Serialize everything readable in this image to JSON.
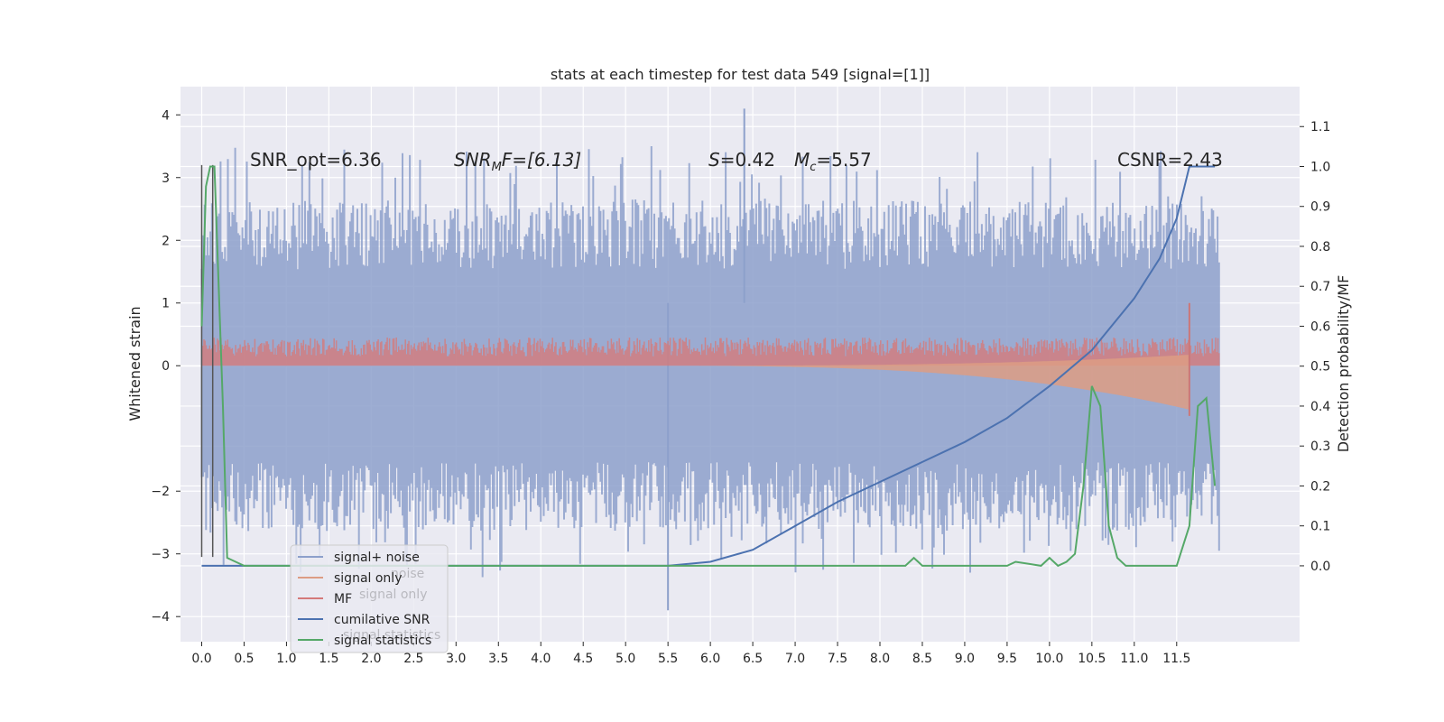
{
  "chart_data": {
    "type": "line",
    "title": "stats at each timestep for test data 549 [signal=[1]]",
    "ylabel": "Whitened strain",
    "ylabel_right": "Detection probability/MF",
    "xlim": [
      -0.25,
      12.95
    ],
    "ylim": [
      -4.4,
      4.45
    ],
    "ylim_right": [
      -0.19,
      1.2
    ],
    "xticks": [
      "0.0",
      "0.5",
      "1.0",
      "1.5",
      "2.0",
      "2.5",
      "3.0",
      "3.5",
      "4.0",
      "4.5",
      "5.0",
      "5.5",
      "6.0",
      "6.5",
      "7.0",
      "7.5",
      "8.0",
      "8.5",
      "9.0",
      "9.5",
      "10.0",
      "10.5",
      "11.0",
      "11.5"
    ],
    "yticks_left": [
      "4",
      "3",
      "2",
      "1",
      "0",
      "−2",
      "−3",
      "−4"
    ],
    "yticks_right": [
      "1.1",
      "1.0",
      "0.9",
      "0.8",
      "0.7",
      "0.6",
      "0.5",
      "0.4",
      "0.3",
      "0.2",
      "0.1",
      "0.0"
    ],
    "grid": true,
    "legend_position": "lower-left",
    "annotations": {
      "snr_opt": "SNR_opt=6.36",
      "snr_mf_main": "SNR",
      "snr_mf_sub": "M",
      "snr_mf_tail": "F=[6.13]",
      "s_val_italic": "S",
      "s_val_rest": "=0.42",
      "mc_main": "M",
      "mc_sub": "c",
      "mc_rest": "=5.57",
      "csnr": "CSNR=2.43"
    },
    "legend": [
      {
        "label": "signal+ noise",
        "color": "#8da0cb"
      },
      {
        "label": "signal only",
        "color": "#dd9c84"
      },
      {
        "label": "MF",
        "color": "#d47a7a"
      },
      {
        "label": "cumilative SNR",
        "color": "#4c72b0"
      },
      {
        "label": "signal statistics",
        "color": "#55a868"
      }
    ],
    "ghost_legend_labels": [
      "noise",
      "signal only",
      "signal statistics"
    ],
    "series": [
      {
        "name": "signal+ noise",
        "axis": "left",
        "kind": "noise-band",
        "x_range": [
          0,
          12
        ],
        "typical_range": [
          -2.2,
          2.2
        ],
        "peak_range": [
          -3.9,
          4.1
        ],
        "color": "#8da0cb"
      },
      {
        "name": "signal only",
        "axis": "left",
        "kind": "chirp",
        "x_range": [
          5.0,
          11.65
        ],
        "max_amplitude": 0.7,
        "color": "#dd9c84"
      },
      {
        "name": "MF",
        "axis": "left",
        "kind": "noise-band",
        "x_range": [
          0,
          12
        ],
        "typical_range": [
          0,
          0.4
        ],
        "color": "#d47a7a"
      },
      {
        "name": "cumilative SNR",
        "axis": "right",
        "x": [
          0.0,
          5.5,
          6.0,
          6.5,
          7.0,
          7.5,
          8.0,
          8.5,
          9.0,
          9.5,
          10.0,
          10.5,
          11.0,
          11.3,
          11.5,
          11.65,
          11.95
        ],
        "y": [
          0.0,
          0.0,
          0.01,
          0.04,
          0.1,
          0.16,
          0.21,
          0.26,
          0.31,
          0.37,
          0.45,
          0.54,
          0.67,
          0.77,
          0.87,
          1.0,
          1.0
        ],
        "color": "#4c72b0"
      },
      {
        "name": "signal statistics",
        "axis": "right",
        "x": [
          0.0,
          0.05,
          0.1,
          0.15,
          0.25,
          0.3,
          0.5,
          4.5,
          8.3,
          8.4,
          8.5,
          8.6,
          9.5,
          9.6,
          9.9,
          10.0,
          10.1,
          10.2,
          10.3,
          10.4,
          10.5,
          10.6,
          10.7,
          10.8,
          10.9,
          11.5,
          11.65,
          11.75,
          11.85,
          11.95
        ],
        "y": [
          0.6,
          0.95,
          1.0,
          1.0,
          0.4,
          0.02,
          0.0,
          0.0,
          0.0,
          0.02,
          0.0,
          0.0,
          0.0,
          0.01,
          0.0,
          0.02,
          0.0,
          0.01,
          0.03,
          0.2,
          0.45,
          0.4,
          0.1,
          0.02,
          0.0,
          0.0,
          0.1,
          0.4,
          0.42,
          0.2
        ],
        "color": "#55a868"
      }
    ],
    "vertical_markers": [
      {
        "x": 0.0,
        "y_range": [
          -3.05,
          3.2
        ],
        "color": "#555555"
      },
      {
        "x": 0.13,
        "y_range": [
          -3.05,
          3.2
        ],
        "color": "#555555"
      }
    ]
  }
}
